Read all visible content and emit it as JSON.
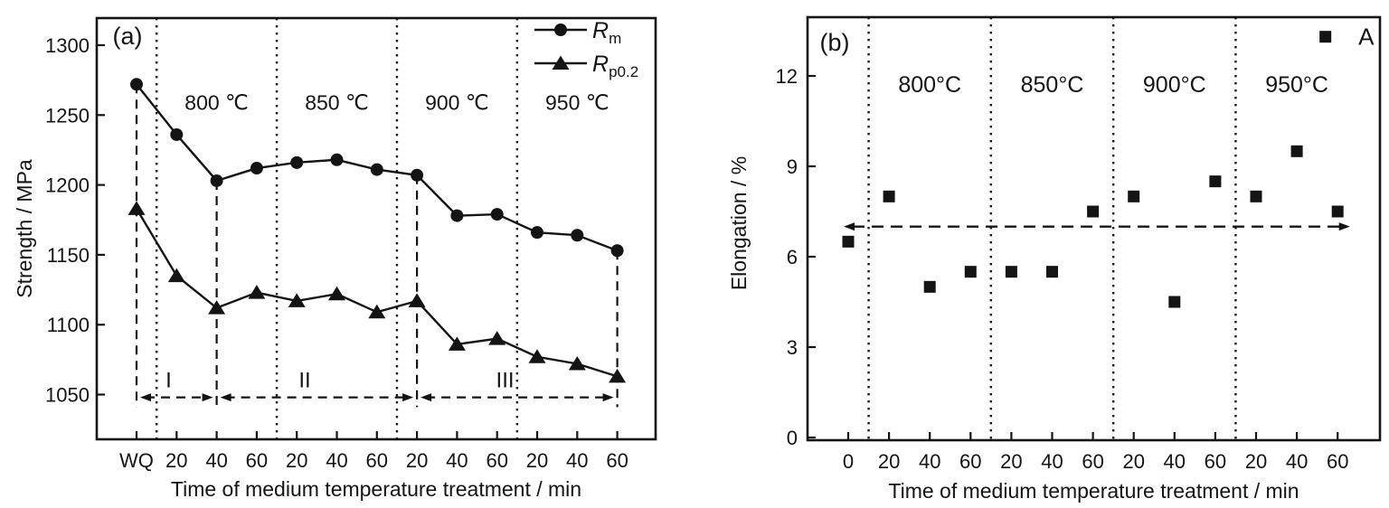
{
  "colors": {
    "ink": "#141414",
    "background": "#ffffff"
  },
  "chart_data": [
    {
      "type": "line",
      "panel_label": "(a)",
      "xlabel": "Time of medium temperature treatment / min",
      "ylabel": "Strength / MPa",
      "categories": [
        "WQ",
        "20",
        "40",
        "60",
        "20",
        "40",
        "60",
        "20",
        "40",
        "60",
        "20",
        "40",
        "60"
      ],
      "yticks": [
        1050,
        1100,
        1150,
        1200,
        1250,
        1300
      ],
      "ylim": [
        1018,
        1320
      ],
      "xlim_index": [
        -1,
        13
      ],
      "grid": false,
      "regions": [
        {
          "label": "800 ℃"
        },
        {
          "label": "850 ℃"
        },
        {
          "label": "900 ℃"
        },
        {
          "label": "950 ℃"
        }
      ],
      "region_boundaries_index": [
        0.5,
        3.5,
        6.5,
        9.5
      ],
      "region_label_centers_index": [
        2,
        5,
        8,
        11
      ],
      "region_label_y": 1259,
      "series": [
        {
          "name": "Rm",
          "marker": "circle",
          "values": [
            1272,
            1236,
            1203,
            1212,
            1216,
            1218,
            1211,
            1207,
            1178,
            1179,
            1166,
            1164,
            1153
          ]
        },
        {
          "name": "Rp0.2",
          "marker": "triangle",
          "values": [
            1183,
            1135,
            1112,
            1123,
            1117,
            1122,
            1109,
            1117,
            1086,
            1090,
            1077,
            1072,
            1063
          ]
        }
      ],
      "legend": {
        "position": "top-right",
        "entries": [
          {
            "base": "R",
            "sub": "m",
            "marker": "circle"
          },
          {
            "base": "R",
            "sub": "p0.2",
            "marker": "triangle"
          }
        ]
      },
      "guides": {
        "x_indices": [
          0,
          2,
          7,
          12
        ],
        "bottom_value": 1041
      },
      "zones": [
        {
          "label": "I",
          "from_index": 0,
          "to_index": 2,
          "label_x_index": 0.8
        },
        {
          "label": "II",
          "from_index": 2,
          "to_index": 7,
          "label_x_index": 4.2
        },
        {
          "label": "III",
          "from_index": 7,
          "to_index": 12,
          "label_x_index": 9.2
        }
      ],
      "zone_arrow_y": 1048,
      "zone_label_y": 1060
    },
    {
      "type": "scatter",
      "panel_label": "(b)",
      "xlabel": "Time of medium temperature treatment / min",
      "ylabel": "Elongation / %",
      "categories": [
        "0",
        "20",
        "40",
        "60",
        "20",
        "40",
        "60",
        "20",
        "40",
        "60",
        "20",
        "40",
        "60"
      ],
      "yticks": [
        0,
        3,
        6,
        9,
        12
      ],
      "ylim": [
        0,
        14
      ],
      "xlim_index": [
        -1,
        13
      ],
      "grid": false,
      "regions": [
        {
          "label": "800°C"
        },
        {
          "label": "850°C"
        },
        {
          "label": "900°C"
        },
        {
          "label": "950°C"
        }
      ],
      "region_boundaries_index": [
        0.5,
        3.5,
        6.5,
        9.5
      ],
      "region_label_centers_index": [
        2,
        5,
        8,
        11
      ],
      "region_label_y": 11.7,
      "series": [
        {
          "name": "Elongation",
          "marker": "square",
          "values": [
            6.5,
            8.0,
            5.0,
            5.5,
            5.5,
            5.5,
            7.5,
            8.0,
            4.5,
            8.5,
            8.0,
            9.5,
            7.5
          ]
        }
      ],
      "extra_points": [
        {
          "x_index": 11.7,
          "y": 13.3
        }
      ],
      "point_label": {
        "text": "A",
        "x_index": 12.7,
        "y": 13.3
      },
      "reference_line": {
        "y": 7.0,
        "from_index": -0.11,
        "to_index": 12.3,
        "arrowheads": "both"
      }
    }
  ]
}
